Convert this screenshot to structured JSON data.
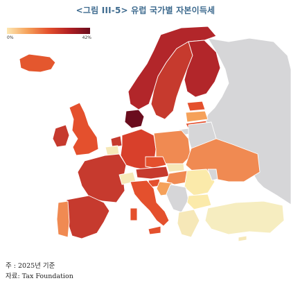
{
  "title": "<그림 III-5> 유럽 국가별 자본이득세",
  "legend": {
    "min_label": "0%",
    "max_label": "42%"
  },
  "notes": {
    "line1": "주   : 2025년 기준",
    "line2": "자료: Tax Foundation"
  },
  "colors": {
    "no_data": "#d6d6d8",
    "scale": [
      "#fde7b3",
      "#f5a15a",
      "#e4502d",
      "#b11f22",
      "#6a0d1e"
    ]
  }
}
